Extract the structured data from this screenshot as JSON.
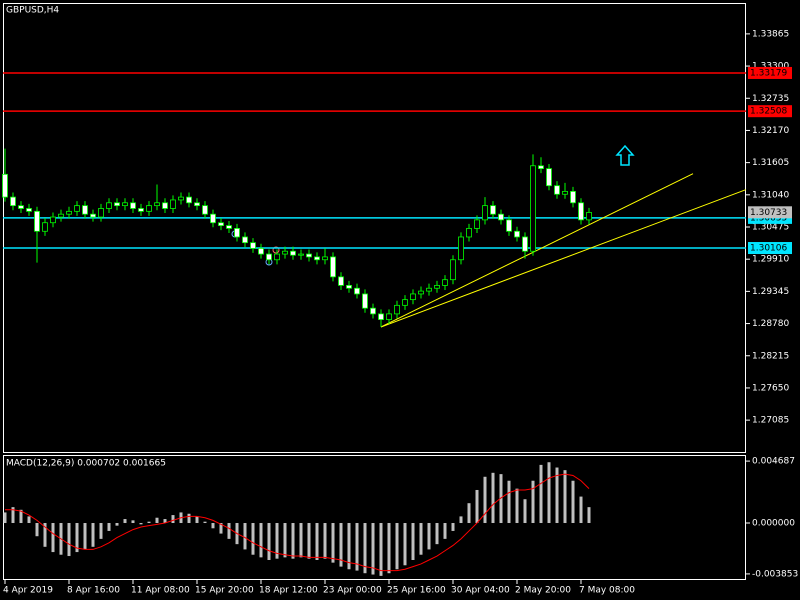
{
  "chart_data": [
    {
      "type": "candlestick",
      "title": "GBPUSD,H4",
      "categories": [
        "4 Apr 2019",
        null,
        null,
        null,
        null,
        null,
        null,
        null,
        "8 Apr 16:00",
        null,
        null,
        null,
        null,
        null,
        null,
        null,
        "11 Apr 08:00",
        null,
        null,
        null,
        null,
        null,
        null,
        null,
        "15 Apr 20:00",
        null,
        null,
        null,
        null,
        null,
        null,
        null,
        "18 Apr 12:00",
        null,
        null,
        null,
        null,
        null,
        null,
        null,
        "23 Apr 00:00",
        null,
        null,
        null,
        null,
        null,
        null,
        null,
        "25 Apr 16:00",
        null,
        null,
        null,
        null,
        null,
        null,
        null,
        "30 Apr 04:00",
        null,
        null,
        null,
        null,
        null,
        null,
        null,
        "2 May 20:00",
        null,
        null,
        null,
        null,
        null,
        null,
        null,
        "7 May 08:00",
        null
      ],
      "open": [
        1.314,
        1.31,
        1.3085,
        1.308,
        1.3075,
        1.304,
        1.3055,
        1.3065,
        1.307,
        1.3075,
        1.3085,
        1.307,
        1.3065,
        1.308,
        1.309,
        1.3085,
        1.309,
        1.308,
        1.3075,
        1.3085,
        1.309,
        1.308,
        1.3095,
        1.31,
        1.309,
        1.3085,
        1.307,
        1.3055,
        1.305,
        1.3045,
        1.303,
        1.302,
        1.301,
        1.3,
        1.299,
        1.3,
        1.3005,
        1.2998,
        1.3,
        1.2995,
        1.299,
        1.2995,
        1.296,
        1.2945,
        1.294,
        1.293,
        1.2905,
        1.2895,
        1.2885,
        1.2895,
        1.291,
        1.292,
        1.293,
        1.2935,
        1.294,
        1.2945,
        1.2955,
        1.299,
        1.303,
        1.3045,
        1.306,
        1.3085,
        1.307,
        1.306,
        1.304,
        1.303,
        1.3005,
        1.3155,
        1.315,
        1.312,
        1.3105,
        1.311,
        1.309,
        1.306
      ],
      "high": [
        1.3185,
        1.3108,
        1.3093,
        1.3088,
        1.3083,
        1.3063,
        1.3073,
        1.3078,
        1.3083,
        1.3093,
        1.3093,
        1.3078,
        1.3088,
        1.3098,
        1.3098,
        1.3098,
        1.3098,
        1.3088,
        1.3093,
        1.3122,
        1.3098,
        1.3103,
        1.3108,
        1.3108,
        1.3098,
        1.3093,
        1.3078,
        1.3063,
        1.3058,
        1.3053,
        1.3038,
        1.3028,
        1.3018,
        1.3008,
        1.3008,
        1.3013,
        1.3013,
        1.3008,
        1.3008,
        1.3003,
        1.301,
        1.3003,
        1.2968,
        1.2953,
        1.2948,
        1.2938,
        1.2913,
        1.2903,
        1.2903,
        1.2918,
        1.2928,
        1.2938,
        1.2943,
        1.2948,
        1.2953,
        1.2963,
        1.2998,
        1.3038,
        1.3053,
        1.3068,
        1.31,
        1.3093,
        1.3078,
        1.3068,
        1.3048,
        1.3038,
        1.3175,
        1.317,
        1.3158,
        1.3128,
        1.3125,
        1.3118,
        1.3098,
        1.3081
      ],
      "low": [
        1.3092,
        1.3077,
        1.3072,
        1.3067,
        1.2985,
        1.3032,
        1.3047,
        1.3057,
        1.3062,
        1.3067,
        1.3062,
        1.3057,
        1.3057,
        1.3072,
        1.3077,
        1.3077,
        1.3072,
        1.3067,
        1.3067,
        1.3077,
        1.3072,
        1.3072,
        1.3087,
        1.3082,
        1.3077,
        1.3062,
        1.3047,
        1.3042,
        1.3037,
        1.3022,
        1.3012,
        1.3002,
        1.2992,
        1.2982,
        1.2982,
        1.2992,
        1.299,
        1.299,
        1.2987,
        1.2982,
        1.2982,
        1.2952,
        1.2937,
        1.2932,
        1.2922,
        1.2897,
        1.2887,
        1.2872,
        1.2877,
        1.2887,
        1.2902,
        1.2912,
        1.2922,
        1.2927,
        1.2932,
        1.2937,
        1.2947,
        1.2982,
        1.3022,
        1.3037,
        1.3052,
        1.3062,
        1.3052,
        1.3032,
        1.3022,
        1.2992,
        1.2997,
        1.3142,
        1.3112,
        1.3097,
        1.3097,
        1.3082,
        1.3052,
        1.3052
      ],
      "close": [
        1.31,
        1.3085,
        1.308,
        1.3075,
        1.304,
        1.3055,
        1.3065,
        1.307,
        1.3075,
        1.3085,
        1.307,
        1.3065,
        1.308,
        1.309,
        1.3085,
        1.309,
        1.308,
        1.3075,
        1.3085,
        1.309,
        1.308,
        1.3095,
        1.31,
        1.309,
        1.3085,
        1.307,
        1.3055,
        1.305,
        1.3045,
        1.303,
        1.302,
        1.301,
        1.3,
        1.299,
        1.3,
        1.3005,
        1.2998,
        1.3,
        1.2995,
        1.299,
        1.2995,
        1.296,
        1.2945,
        1.294,
        1.293,
        1.2905,
        1.2895,
        1.2885,
        1.2895,
        1.291,
        1.292,
        1.293,
        1.2935,
        1.294,
        1.2945,
        1.2955,
        1.299,
        1.303,
        1.3045,
        1.306,
        1.3085,
        1.307,
        1.306,
        1.304,
        1.303,
        1.3005,
        1.3155,
        1.315,
        1.312,
        1.3105,
        1.311,
        1.309,
        1.306,
        1.3073
      ],
      "up_color": "#00ff00",
      "down_color": "#ffffff",
      "ylim": [
        1.26508,
        1.34407
      ],
      "yticks": [
        1.33865,
        {
          "value": 1.333,
          "label": "1.33300"
        },
        1.32735,
        {
          "value": 1.3217,
          "label": "1.32170"
        },
        1.31605,
        {
          "value": 1.3104,
          "label": "1.31040"
        },
        1.30475,
        {
          "value": 1.2991,
          "label": "1.29910"
        },
        1.29345,
        {
          "value": 1.2878,
          "label": "1.28780"
        },
        1.28215,
        {
          "value": 1.2765,
          "label": "1.27650"
        },
        1.27085
      ],
      "levels": [
        {
          "value": 1.33179,
          "color": "#ff0000"
        },
        {
          "value": 1.32508,
          "color": "#ff0000"
        },
        {
          "value": 1.30635,
          "color": "#00e5ff"
        },
        {
          "value": 1.30106,
          "color": "#00e5ff"
        }
      ],
      "bid": 1.30733,
      "trendlines": [
        {
          "color": "#ffff00",
          "from": [
            47,
            1.2872
          ],
          "to": [
            86,
            1.3141
          ]
        },
        {
          "color": "#ffff00",
          "from": [
            47,
            1.2872
          ],
          "to": [
            92.6,
            1.3113
          ]
        }
      ]
    },
    {
      "type": "macd",
      "title": "MACD(12,26,9) 0.000702 0.001665",
      "histogram": {
        "color": "#c0c0c0",
        "values": [
          0.0008,
          0.0012,
          0.001,
          0.0005,
          -0.001,
          -0.0018,
          -0.0022,
          -0.0024,
          -0.0025,
          -0.0022,
          -0.002,
          -0.0018,
          -0.0012,
          -0.0006,
          -0.0002,
          0.0003,
          0.0002,
          -0.0001,
          0.0001,
          0.0004,
          0.0003,
          0.0006,
          0.0008,
          0.0007,
          0.0005,
          0.0001,
          -0.0004,
          -0.0008,
          -0.0012,
          -0.0016,
          -0.002,
          -0.0024,
          -0.0026,
          -0.0028,
          -0.0027,
          -0.0026,
          -0.0027,
          -0.0026,
          -0.0027,
          -0.0028,
          -0.0027,
          -0.003,
          -0.0033,
          -0.0035,
          -0.0036,
          -0.0038,
          -0.0039,
          -0.004,
          -0.0038,
          -0.0035,
          -0.0032,
          -0.0028,
          -0.0024,
          -0.002,
          -0.0016,
          -0.0012,
          -0.0006,
          0.0005,
          0.0015,
          0.0025,
          0.0035,
          0.0038,
          0.0037,
          0.0032,
          0.0026,
          0.0018,
          0.0032,
          0.0044,
          0.0046,
          0.0042,
          0.004,
          0.0032,
          0.002,
          0.0012
        ]
      },
      "signal": {
        "color": "#ff0000",
        "values": [
          0.001,
          0.001,
          0.0009,
          0.0006,
          0.0002,
          -0.0003,
          -0.0008,
          -0.0012,
          -0.0016,
          -0.0019,
          -0.002,
          -0.002,
          -0.0018,
          -0.0015,
          -0.0011,
          -0.0008,
          -0.0005,
          -0.0003,
          -0.0002,
          -0.0001,
          0.0,
          0.0002,
          0.0004,
          0.0005,
          0.0005,
          0.0004,
          0.0002,
          -0.0001,
          -0.0004,
          -0.0008,
          -0.0011,
          -0.0015,
          -0.0018,
          -0.0021,
          -0.0023,
          -0.0024,
          -0.0025,
          -0.0025,
          -0.0026,
          -0.0026,
          -0.0026,
          -0.0027,
          -0.0028,
          -0.003,
          -0.0031,
          -0.0033,
          -0.0034,
          -0.0036,
          -0.0036,
          -0.0036,
          -0.0035,
          -0.0033,
          -0.0031,
          -0.0028,
          -0.0025,
          -0.0021,
          -0.0017,
          -0.0012,
          -0.0006,
          0.0,
          0.0007,
          0.0014,
          0.0019,
          0.0023,
          0.0025,
          0.0025,
          0.0026,
          0.003,
          0.0034,
          0.0036,
          0.0037,
          0.0036,
          0.0032,
          0.0026
        ]
      },
      "ylim": [
        -0.004314,
        0.005148
      ],
      "yticks": [
        0.004687,
        {
          "value": 0,
          "label": "0.000000"
        },
        -0.003853
      ]
    }
  ]
}
